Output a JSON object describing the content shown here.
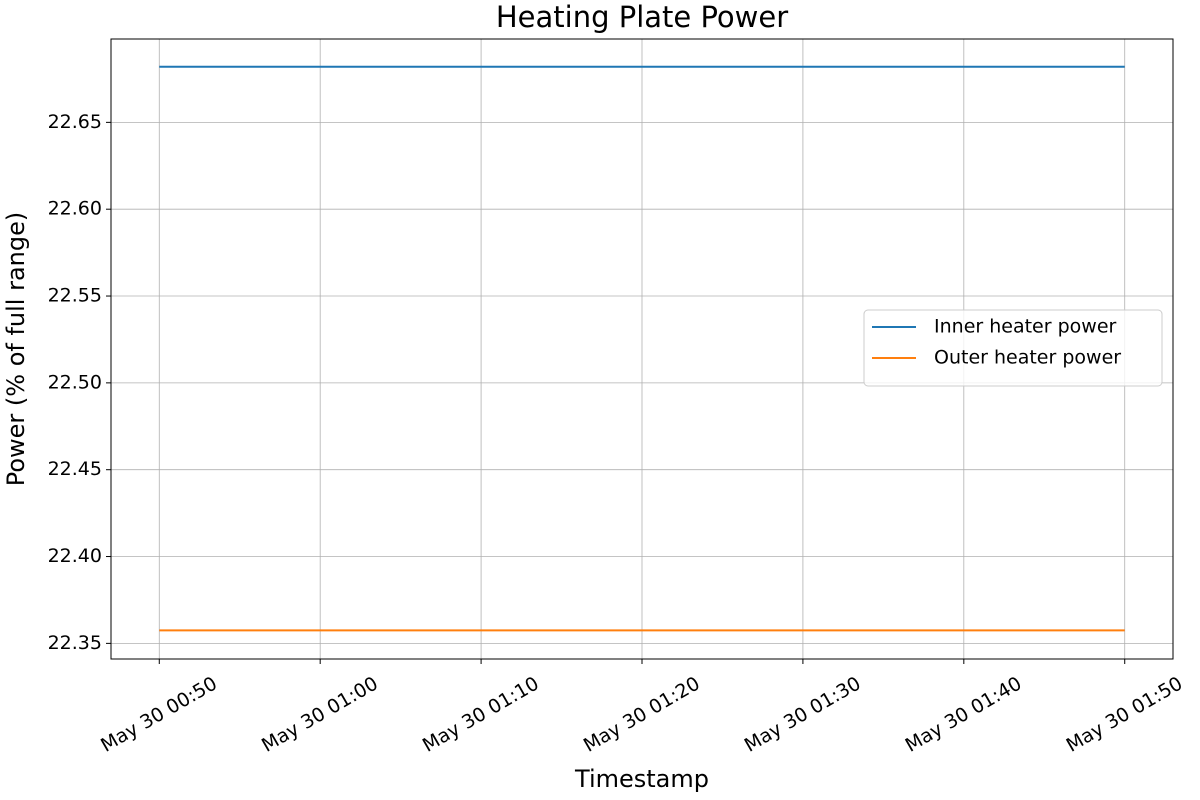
{
  "chart_data": {
    "type": "line",
    "title": "Heating Plate Power",
    "x_label": "Timestamp",
    "y_label": "Power (% of full range)",
    "x": [
      "May 30 00:50",
      "May 30 01:50"
    ],
    "series": [
      {
        "name": "Inner heater power",
        "color": "#1f77b4",
        "values": [
          22.682,
          22.682
        ]
      },
      {
        "name": "Outer heater power",
        "color": "#ff7f0e",
        "values": [
          22.3575,
          22.3575
        ]
      }
    ],
    "xlim": [
      "May 30 00:47",
      "May 30 01:53"
    ],
    "xticks": [
      "May 30 00:50",
      "May 30 01:00",
      "May 30 01:10",
      "May 30 01:20",
      "May 30 01:30",
      "May 30 01:40",
      "May 30 01:50"
    ],
    "ylim": [
      22.341,
      22.698
    ],
    "yticks": [
      22.35,
      {
        "value": 22.4,
        "label": "22.40"
      },
      22.45,
      {
        "value": 22.5,
        "label": "22.50"
      },
      22.55,
      {
        "value": 22.6,
        "label": "22.60"
      },
      22.65
    ],
    "grid": true,
    "legend": "center right"
  }
}
